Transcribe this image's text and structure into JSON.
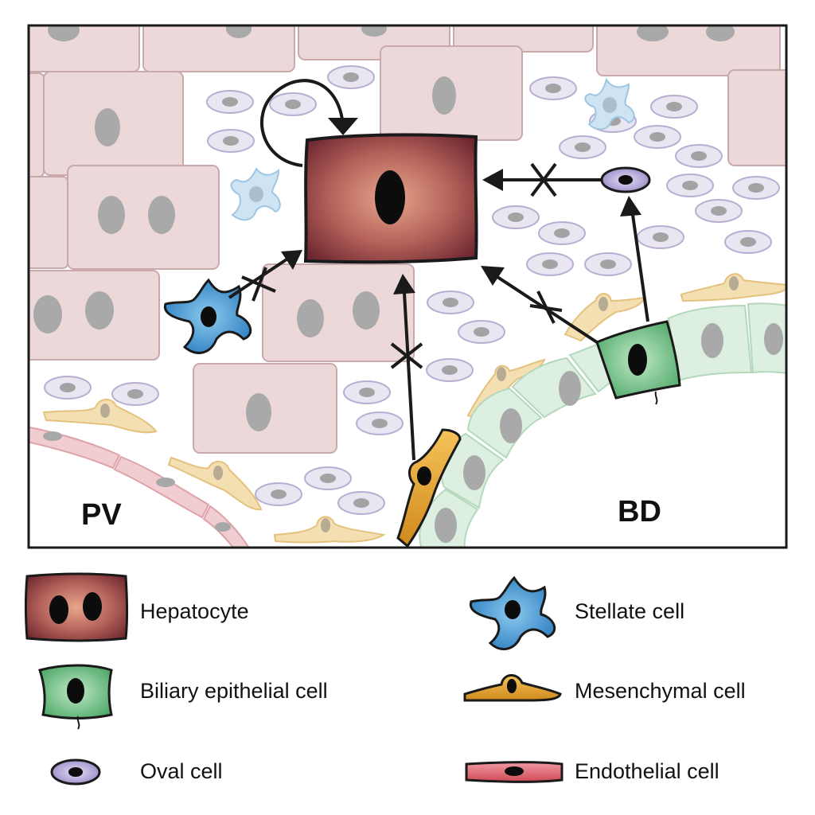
{
  "regions": {
    "left": "PV",
    "right": "BD"
  },
  "legend": {
    "hepatocyte": "Hepatocyte",
    "biliary": "Biliary epithelial cell",
    "oval": "Oval cell",
    "stellate": "Stellate cell",
    "mesenchymal": "Mesenchymal cell",
    "endothelial": "Endothelial cell"
  },
  "colors": {
    "hepatocyte": "#7a2f35",
    "hepatocyte_faded": "#ead6d6",
    "biliary": "#3fa15f",
    "biliary_faded": "#dcefdf",
    "oval": "#8e7fb8",
    "oval_faded": "#e6e2ef",
    "stellate": "#2f86c4",
    "stellate_faded": "#cfe3f1",
    "mesenchymal": "#d99423",
    "mesenchymal_faded": "#f2deb3",
    "endothelial": "#d1545f",
    "endothelial_faded": "#f0ccd0",
    "nucleus": "#111111",
    "nucleus_faded": "#a9a9a9"
  }
}
